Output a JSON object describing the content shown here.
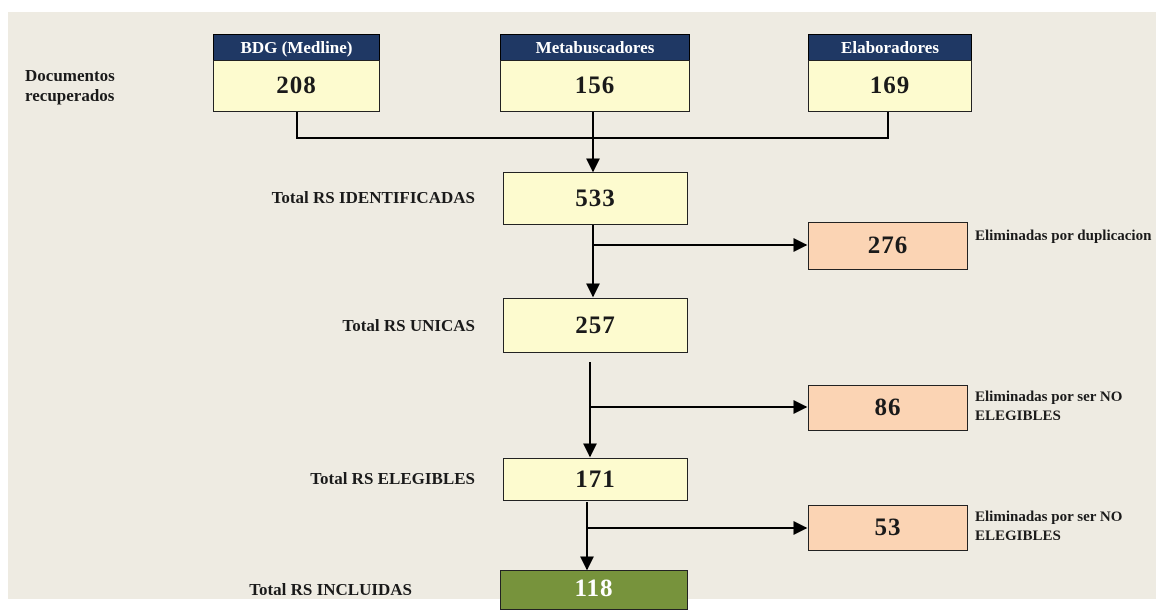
{
  "label": "Documentos recuperados",
  "sources": [
    {
      "name": "BDG (Medline)",
      "count": 208
    },
    {
      "name": "Metabuscadores",
      "count": 156
    },
    {
      "name": "Elaboradores",
      "count": 169
    }
  ],
  "stages": [
    {
      "label": "Total RS IDENTIFICADAS",
      "count": 533
    },
    {
      "label": "Total RS UNICAS",
      "count": 257
    },
    {
      "label": "Total RS ELEGIBLES",
      "count": 171
    },
    {
      "label": "Total RS INCLUIDAS",
      "count": 118
    }
  ],
  "exclusions": [
    {
      "count": 276,
      "label": "Eliminadas por duplicacion"
    },
    {
      "count": 86,
      "label": "Eliminadas por ser NO ELEGIBLES"
    },
    {
      "count": 53,
      "label": "Eliminadas por ser NO ELEGIBLES"
    }
  ]
}
